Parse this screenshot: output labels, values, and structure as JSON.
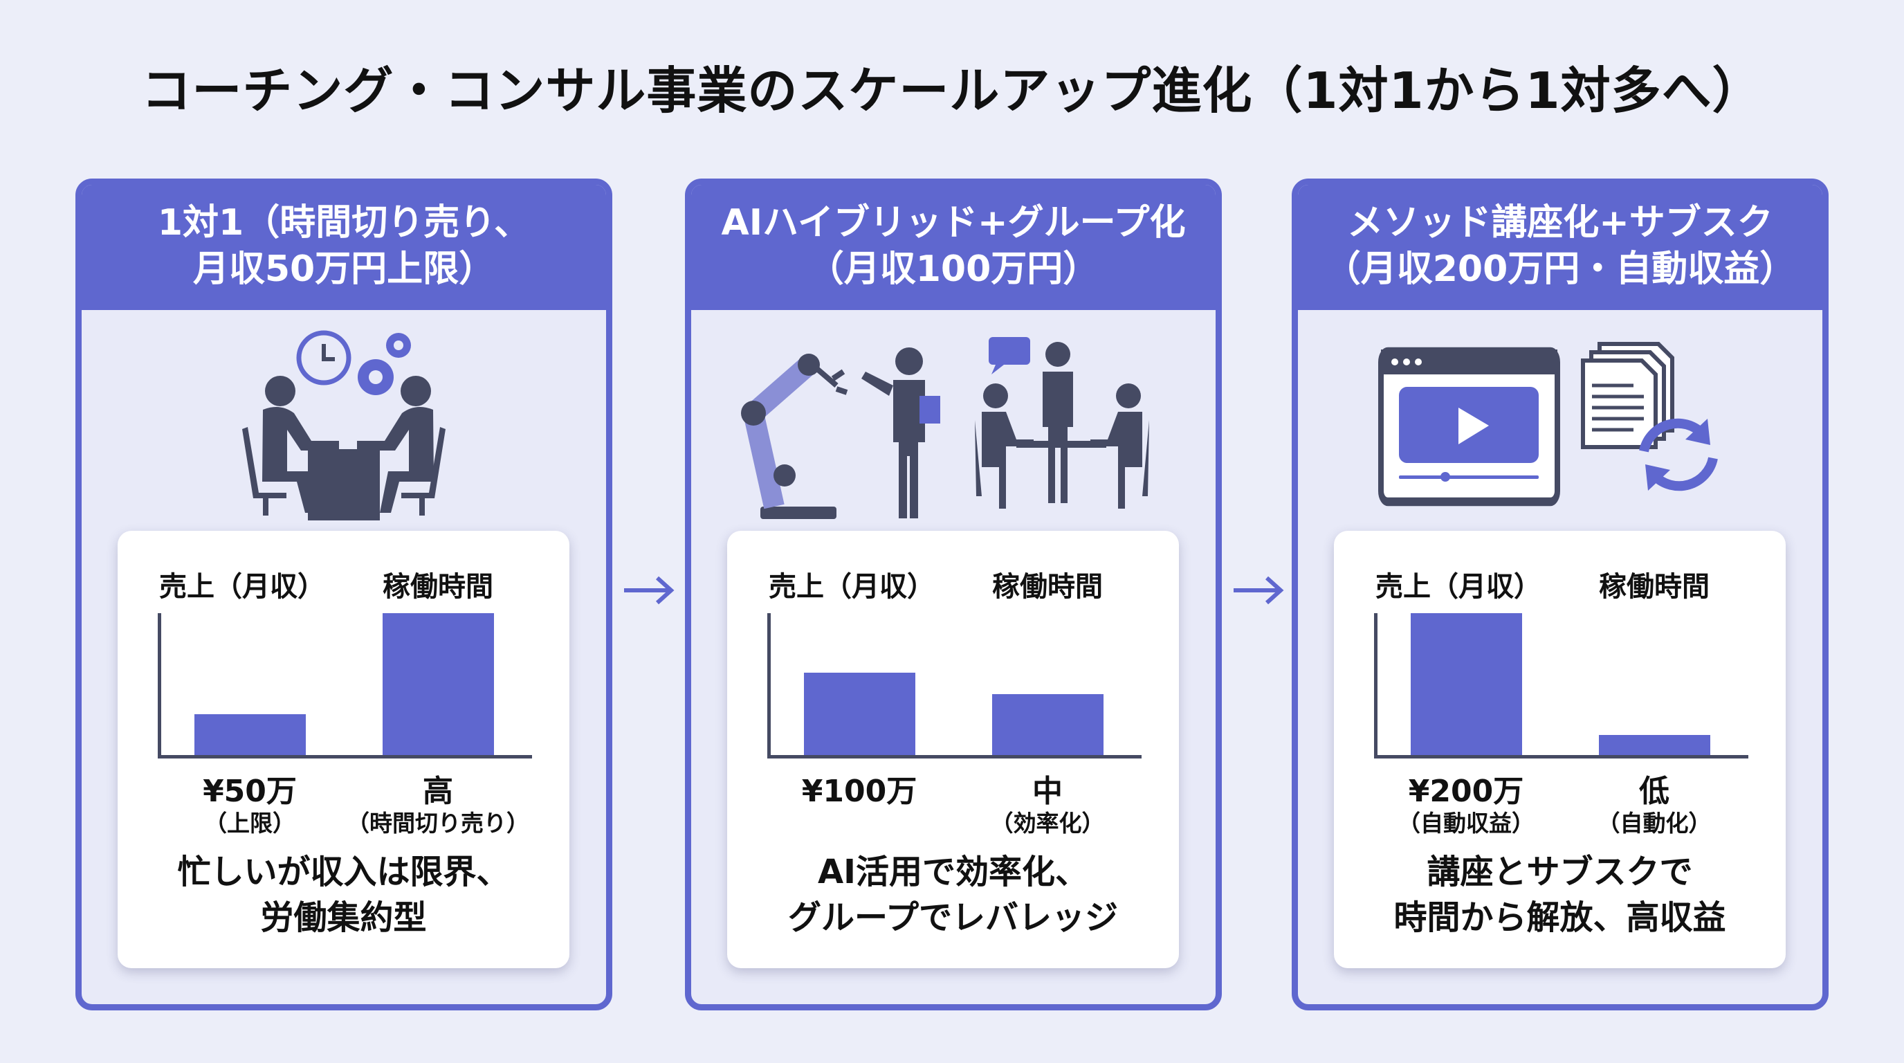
{
  "title": "コーチング・コンサル事業のスケールアップ進化（1対1から1対多へ）",
  "colors": {
    "accent": "#5f67cf",
    "dark": "#454a63",
    "background": "#eceef9"
  },
  "panels": [
    {
      "header": [
        "1対1（時間切り売り、",
        "月収50万円上限）"
      ],
      "icons": [
        "clock-icon",
        "gears-icon",
        "one-on-one-meeting-icon"
      ],
      "chart": {
        "headers": [
          "売上（月収）",
          "稼働時間"
        ],
        "values": [
          "¥50万",
          "高"
        ],
        "sublabels": [
          "（上限）",
          "（時間切り売り）"
        ]
      },
      "summary": [
        "忙しいが収入は限界、",
        "労働集約型"
      ]
    },
    {
      "header": [
        "AIハイブリッド+グループ化",
        "（月収100万円）"
      ],
      "icons": [
        "robot-arm-icon",
        "presenter-icon",
        "group-meeting-icon"
      ],
      "chart": {
        "headers": [
          "売上（月収）",
          "稼働時間"
        ],
        "values": [
          "¥100万",
          "中"
        ],
        "sublabels": [
          "",
          "（効率化）"
        ]
      },
      "summary": [
        "AI活用で効率化、",
        "グループでレバレッジ"
      ]
    },
    {
      "header": [
        "メソッド講座化+サブスク",
        "（月収200万円・自動収益）"
      ],
      "icons": [
        "video-course-icon",
        "documents-sync-icon"
      ],
      "chart": {
        "headers": [
          "売上（月収）",
          "稼働時間"
        ],
        "values": [
          "¥200万",
          "低"
        ],
        "sublabels": [
          "（自動収益）",
          "（自動化）"
        ]
      },
      "summary": [
        "講座とサブスクで",
        "時間から解放、高収益"
      ]
    }
  ],
  "chart_data": [
    {
      "type": "bar",
      "categories": [
        "売上（月収）",
        "稼働時間"
      ],
      "values": [
        0.29,
        1.0
      ],
      "value_labels": [
        "¥50万",
        "高"
      ],
      "note_scale": "relative level 0-1"
    },
    {
      "type": "bar",
      "categories": [
        "売上（月収）",
        "稼働時間"
      ],
      "values": [
        0.58,
        0.43
      ],
      "value_labels": [
        "¥100万",
        "中"
      ]
    },
    {
      "type": "bar",
      "categories": [
        "売上（月収）",
        "稼働時間"
      ],
      "values": [
        1.0,
        0.14
      ],
      "value_labels": [
        "¥200万",
        "低"
      ]
    }
  ]
}
